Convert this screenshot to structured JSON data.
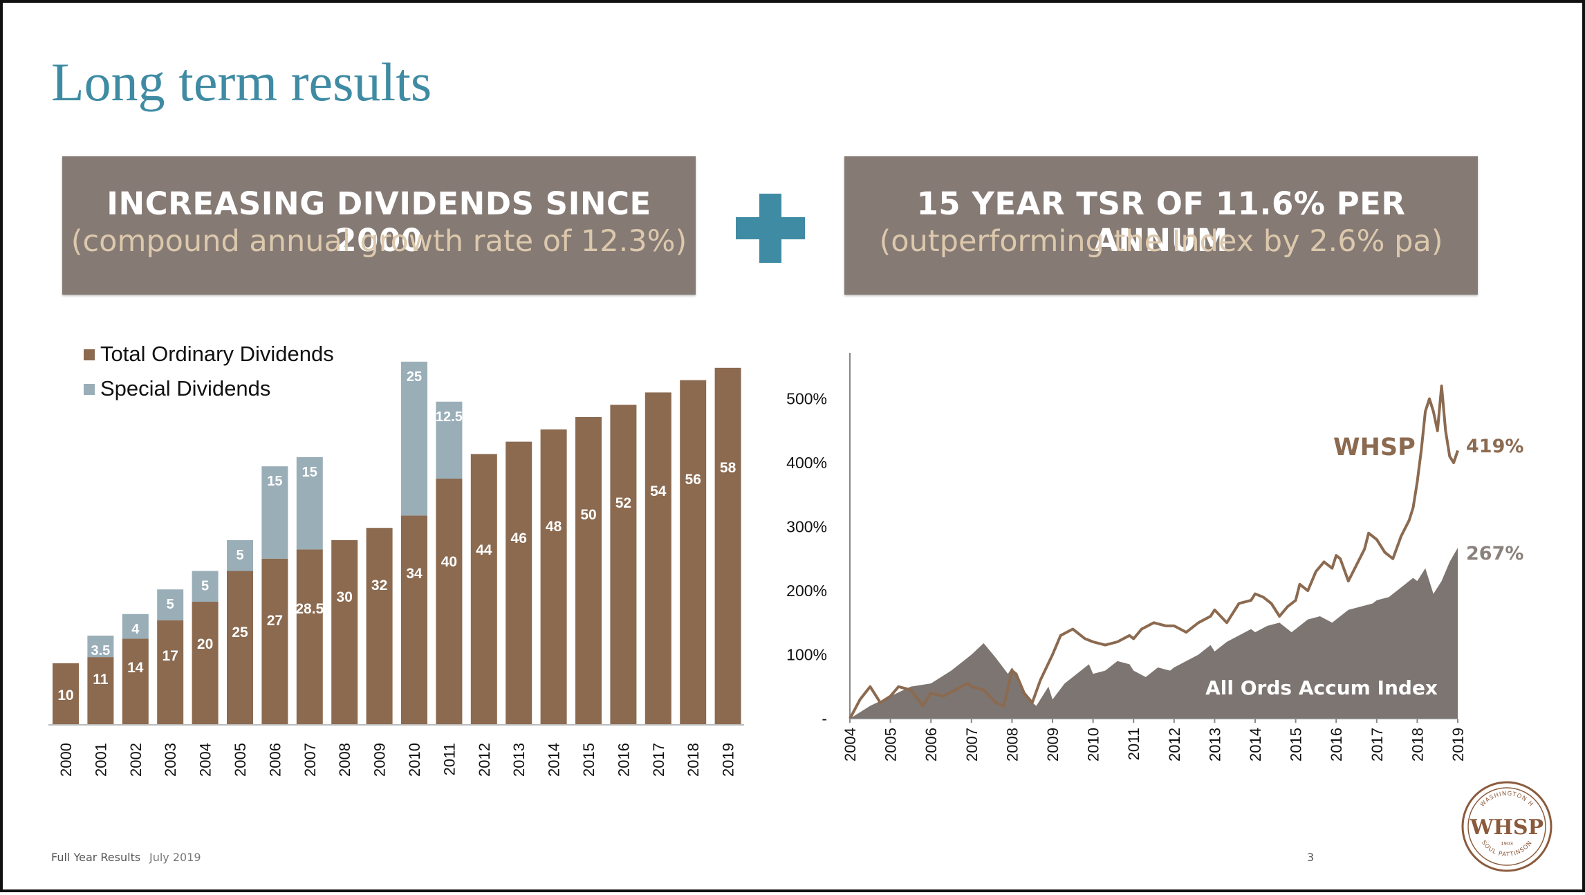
{
  "slide": {
    "title": "Long term results",
    "footer_label": "Full Year Results",
    "footer_date": "July 2019",
    "page_number": "3"
  },
  "banners": {
    "left": {
      "main": "INCREASING DIVIDENDS SINCE 2000",
      "sub": "(compound annual growth rate of 12.3%)"
    },
    "right": {
      "main": "15 YEAR TSR OF 11.6% PER ANNUM",
      "sub": "(outperforming the Index by 2.6% pa)"
    }
  },
  "icons": {
    "separator": "plus-icon",
    "logo": "whsp-seal-logo"
  },
  "colors": {
    "accent": "#3f8ba3",
    "banner": "#857a74",
    "ordinary": "#8b6a50",
    "special": "#9aaeb8",
    "whsp_line": "#8b6a50",
    "index_area": "#7d7571"
  },
  "logo": {
    "brand": "WHSP",
    "top_text": "WASHINGTON H",
    "bottom_text": "SOUL PATTINSON",
    "year": "1903"
  },
  "chart_data": [
    {
      "type": "bar",
      "stacked": true,
      "categories": [
        "2000",
        "2001",
        "2002",
        "2003",
        "2004",
        "2005",
        "2006",
        "2007",
        "2008",
        "2009",
        "2010",
        "2011",
        "2012",
        "2013",
        "2014",
        "2015",
        "2016",
        "2017",
        "2018",
        "2019"
      ],
      "series": [
        {
          "name": "Total Ordinary Dividends",
          "values": [
            10,
            11,
            14,
            17,
            20,
            25,
            27,
            28.5,
            30,
            32,
            34,
            40,
            44,
            46,
            48,
            50,
            52,
            54,
            56,
            58
          ],
          "labels": [
            "10",
            "11",
            "14",
            "17",
            "20",
            "25",
            "27",
            "28.5",
            "30",
            "32",
            "34",
            "40",
            "44",
            "46",
            "48",
            "50",
            "52",
            "54",
            "56",
            "58"
          ]
        },
        {
          "name": "Special Dividends",
          "values": [
            0,
            3.5,
            4,
            5,
            5,
            5,
            15,
            15,
            0,
            0,
            25,
            12.5,
            0,
            0,
            0,
            0,
            0,
            0,
            0,
            0
          ],
          "labels": [
            "",
            "3.5",
            "4",
            "5",
            "5",
            "5",
            "15",
            "15",
            "",
            "",
            "25",
            "12.5",
            "",
            "",
            "",
            "",
            "",
            "",
            "",
            ""
          ]
        }
      ],
      "legend_position": "top-left",
      "ylim": [
        0,
        60
      ]
    },
    {
      "type": "area",
      "x_ticks": [
        "2004",
        "2005",
        "2006",
        "2007",
        "2008",
        "2009",
        "2010",
        "2011",
        "2012",
        "2013",
        "2014",
        "2015",
        "2016",
        "2017",
        "2018",
        "2019"
      ],
      "y_ticks": [
        {
          "value": 0,
          "label": "-"
        },
        {
          "value": 100,
          "label": "100%"
        },
        {
          "value": 200,
          "label": "200%"
        },
        {
          "value": 300,
          "label": "300%"
        },
        {
          "value": 400,
          "label": "400%"
        },
        {
          "value": 500,
          "label": "500%"
        }
      ],
      "ylim": [
        0,
        570
      ],
      "xlim": [
        2004,
        2019
      ],
      "series": [
        {
          "name": "WHSP",
          "end_label": "419%",
          "style": "line",
          "x": [
            2004.0,
            2004.25,
            2004.5,
            2004.75,
            2005.0,
            2005.2,
            2005.5,
            2005.8,
            2006.0,
            2006.3,
            2006.6,
            2006.9,
            2007.0,
            2007.3,
            2007.6,
            2007.8,
            2008.0,
            2008.1,
            2008.3,
            2008.5,
            2008.7,
            2009.0,
            2009.2,
            2009.5,
            2009.8,
            2010.0,
            2010.3,
            2010.6,
            2010.9,
            2011.0,
            2011.2,
            2011.5,
            2011.8,
            2012.0,
            2012.3,
            2012.6,
            2012.9,
            2013.0,
            2013.3,
            2013.6,
            2013.9,
            2014.0,
            2014.2,
            2014.4,
            2014.6,
            2014.8,
            2015.0,
            2015.1,
            2015.3,
            2015.5,
            2015.7,
            2015.9,
            2016.0,
            2016.1,
            2016.3,
            2016.5,
            2016.7,
            2016.8,
            2017.0,
            2017.2,
            2017.4,
            2017.6,
            2017.8,
            2017.9,
            2018.0,
            2018.1,
            2018.2,
            2018.3,
            2018.4,
            2018.5,
            2018.6,
            2018.7,
            2018.8,
            2018.9,
            2019.0
          ],
          "y": [
            0,
            30,
            50,
            25,
            35,
            50,
            45,
            20,
            40,
            35,
            45,
            55,
            50,
            45,
            25,
            20,
            75,
            70,
            40,
            25,
            60,
            100,
            130,
            140,
            125,
            120,
            115,
            120,
            130,
            125,
            140,
            150,
            145,
            145,
            135,
            150,
            160,
            170,
            150,
            180,
            185,
            195,
            190,
            180,
            160,
            175,
            185,
            210,
            200,
            230,
            245,
            235,
            255,
            250,
            215,
            240,
            265,
            290,
            280,
            260,
            250,
            285,
            310,
            330,
            370,
            420,
            480,
            500,
            480,
            450,
            520,
            450,
            410,
            400,
            419
          ]
        },
        {
          "name": "All Ords Accum Index",
          "end_label": "267%",
          "style": "area",
          "x": [
            2004.0,
            2004.5,
            2005.0,
            2005.5,
            2006.0,
            2006.5,
            2007.0,
            2007.3,
            2007.6,
            2007.9,
            2008.0,
            2008.2,
            2008.4,
            2008.6,
            2008.9,
            2009.0,
            2009.3,
            2009.6,
            2009.9,
            2010.0,
            2010.3,
            2010.6,
            2010.9,
            2011.0,
            2011.3,
            2011.6,
            2011.9,
            2012.0,
            2012.3,
            2012.6,
            2012.9,
            2013.0,
            2013.3,
            2013.6,
            2013.9,
            2014.0,
            2014.3,
            2014.6,
            2014.9,
            2015.0,
            2015.3,
            2015.6,
            2015.9,
            2016.0,
            2016.3,
            2016.6,
            2016.9,
            2017.0,
            2017.3,
            2017.6,
            2017.9,
            2018.0,
            2018.2,
            2018.4,
            2018.6,
            2018.8,
            2019.0
          ],
          "y": [
            0,
            20,
            35,
            50,
            55,
            75,
            100,
            118,
            95,
            70,
            80,
            60,
            30,
            20,
            50,
            30,
            55,
            70,
            85,
            70,
            75,
            90,
            85,
            75,
            65,
            80,
            75,
            80,
            90,
            100,
            115,
            105,
            120,
            130,
            140,
            135,
            145,
            150,
            135,
            140,
            155,
            160,
            150,
            155,
            170,
            175,
            180,
            185,
            190,
            205,
            220,
            215,
            235,
            195,
            215,
            245,
            267
          ]
        }
      ],
      "annotations": [
        "WHSP",
        "All Ords Accum Index"
      ]
    }
  ]
}
